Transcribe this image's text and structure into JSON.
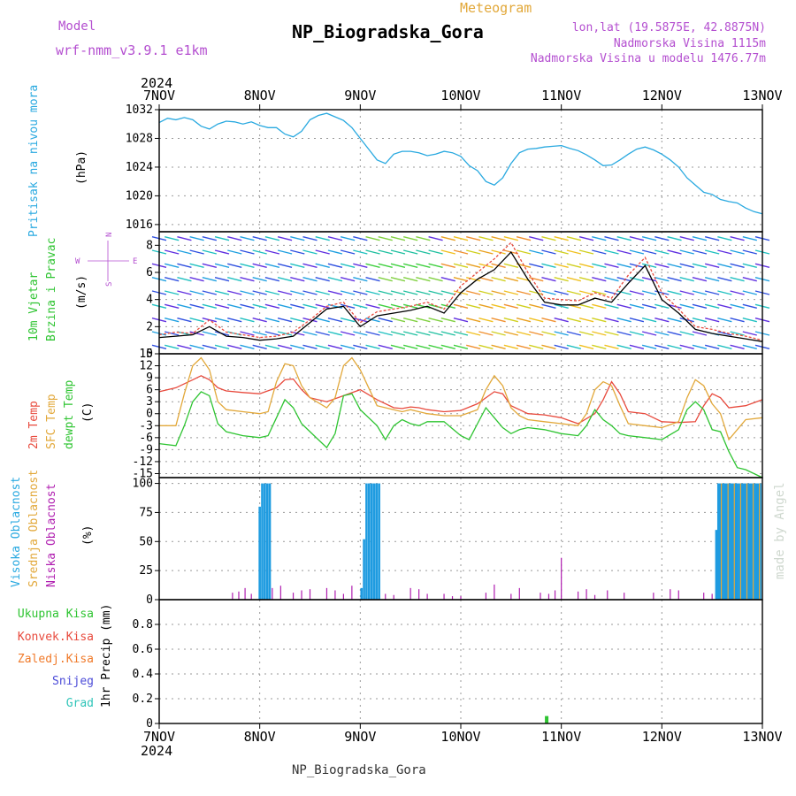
{
  "header": {
    "model_label": "Model",
    "model_name": "wrf-nmm_v3.9.1 e1km",
    "title": "NP_Biogradska_Gora",
    "subtitle": "Meteogram",
    "lonlat": "lon,lat (19.5875E, 42.8875N)",
    "altitude": "Nadmorska Visina 1115m",
    "model_altitude": "Nadmorska Visina u modelu 1476.77m",
    "footer": "NP_Biogradska_Gora",
    "watermark": "made by Angel",
    "year": "2024"
  },
  "colors": {
    "pressure": "#29a9e0",
    "temp2m": "#e84a3d",
    "sfc": "#e2a83a",
    "dewpt": "#2ec431",
    "high_cloud": "#1e9be0",
    "mid_cloud": "#e2a83a",
    "low_cloud": "#b01eb0",
    "total_precip": "#2ec431",
    "convective": "#e84a3d",
    "freezing": "#f07a2a",
    "snow": "#4b4bd8",
    "hail": "#2ec4b8",
    "purple_text": "#b44fd0",
    "grid": "#999999"
  },
  "chart_data": {
    "type": "meteogram",
    "x_ticks": [
      "7NOV",
      "8NOV",
      "9NOV",
      "10NOV",
      "11NOV",
      "12NOV",
      "13NOV"
    ],
    "x_range_hours": [
      0,
      144
    ],
    "panels": [
      {
        "id": "pressure",
        "type": "line",
        "ylabel_lines": [
          "Pritisak na nivou mora"
        ],
        "unit": "(hPa)",
        "ylim": [
          1015,
          1032
        ],
        "yticks": [
          1016,
          1020,
          1024,
          1028,
          1032
        ],
        "series": [
          {
            "x": [
              0,
              2,
              4,
              6,
              8,
              10,
              12,
              14,
              16,
              18,
              20,
              22,
              24,
              26,
              28,
              30,
              32,
              34,
              36,
              38,
              40,
              42,
              44,
              46,
              48,
              50,
              52,
              54,
              56,
              58,
              60,
              62,
              64,
              66,
              68,
              70,
              72,
              74,
              76,
              78,
              80,
              82,
              84,
              86,
              88,
              90,
              92,
              94,
              96,
              98,
              100,
              102,
              104,
              106,
              108,
              110,
              112,
              114,
              116,
              118,
              120,
              122,
              124,
              126,
              128,
              130,
              132,
              134,
              136,
              138,
              140,
              142,
              144
            ],
            "y": [
              1030.2,
              1030.8,
              1030.6,
              1030.9,
              1030.6,
              1029.7,
              1029.3,
              1030,
              1030.4,
              1030.3,
              1030,
              1030.3,
              1029.8,
              1029.5,
              1029.5,
              1028.6,
              1028.2,
              1029,
              1030.6,
              1031.2,
              1031.5,
              1031,
              1030.5,
              1029.5,
              1028,
              1026.5,
              1025,
              1024.5,
              1025.8,
              1026.2,
              1026.2,
              1026,
              1025.6,
              1025.8,
              1026.2,
              1026,
              1025.5,
              1024.2,
              1023.5,
              1022,
              1021.5,
              1022.5,
              1024.5,
              1026,
              1026.5,
              1026.6,
              1026.8,
              1026.9,
              1027,
              1026.6,
              1026.3,
              1025.7,
              1025,
              1024.2,
              1024.3,
              1025,
              1025.8,
              1026.5,
              1026.8,
              1026.4,
              1025.8,
              1025,
              1024,
              1022.5,
              1021.5,
              1020.5,
              1020.2,
              1019.5,
              1019.2,
              1019,
              1018.3,
              1017.8,
              1017.5
            ]
          }
        ]
      },
      {
        "id": "wind",
        "type": "line",
        "ylabel_lines": [
          "10m Vjetar",
          "Brzina i Pravac"
        ],
        "unit": "(m/s)",
        "ylim": [
          0,
          9
        ],
        "yticks": [
          0,
          2,
          4,
          6,
          8
        ],
        "compass": [
          "N",
          "E",
          "S",
          "W"
        ],
        "series": [
          {
            "name": "speed",
            "x": [
              0,
              4,
              8,
              12,
              16,
              20,
              24,
              28,
              32,
              36,
              40,
              44,
              48,
              52,
              56,
              60,
              64,
              68,
              72,
              76,
              80,
              84,
              88,
              92,
              96,
              100,
              104,
              108,
              112,
              116,
              120,
              124,
              128,
              132,
              136,
              140,
              144
            ],
            "y": [
              1.2,
              1.3,
              1.4,
              2.0,
              1.3,
              1.2,
              1.0,
              1.1,
              1.3,
              2.3,
              3.3,
              3.5,
              2.0,
              2.8,
              3.0,
              3.2,
              3.5,
              3.0,
              4.5,
              5.5,
              6.2,
              7.5,
              5.5,
              3.8,
              3.6,
              3.6,
              4.1,
              3.8,
              5.2,
              6.5,
              4.0,
              3.0,
              1.8,
              1.5,
              1.3,
              1.1,
              0.9
            ]
          },
          {
            "name": "gust",
            "x": [
              0,
              4,
              8,
              12,
              16,
              20,
              24,
              28,
              32,
              36,
              40,
              44,
              48,
              52,
              56,
              60,
              64,
              68,
              72,
              76,
              80,
              84,
              88,
              92,
              96,
              100,
              104,
              108,
              112,
              116,
              120,
              124,
              128,
              132,
              136,
              140,
              144
            ],
            "y": [
              1.4,
              1.6,
              1.5,
              2.5,
              1.6,
              1.4,
              1.2,
              1.3,
              1.6,
              2.5,
              3.5,
              3.8,
              2.3,
              3.1,
              3.3,
              3.5,
              3.8,
              3.3,
              5.0,
              6.0,
              7.0,
              8.2,
              6.0,
              4.1,
              4.0,
              3.9,
              4.5,
              4.1,
              5.8,
              7.1,
              4.5,
              3.3,
              2.0,
              1.8,
              1.5,
              1.3,
              1.0
            ]
          }
        ]
      },
      {
        "id": "temperature",
        "type": "line",
        "ylabel_lines": [
          "2m Temp",
          "SFC Temp",
          "dewpt Temp"
        ],
        "unit": "(C)",
        "ylim": [
          -16,
          15
        ],
        "yticks": [
          -15,
          -12,
          -9,
          -6,
          -3,
          0,
          3,
          6,
          9,
          12,
          15
        ],
        "series": [
          {
            "name": "2m Temp",
            "x": [
              0,
              4,
              8,
              10,
              12,
              14,
              16,
              20,
              24,
              28,
              30,
              32,
              34,
              36,
              40,
              44,
              48,
              52,
              56,
              58,
              60,
              62,
              64,
              68,
              72,
              76,
              80,
              82,
              84,
              86,
              88,
              92,
              96,
              100,
              104,
              106,
              108,
              110,
              112,
              116,
              120,
              124,
              128,
              130,
              132,
              134,
              136,
              140,
              144
            ],
            "y": [
              5.5,
              6.5,
              8.5,
              9.5,
              8.5,
              6.5,
              5.7,
              5.3,
              5.0,
              6.5,
              8.5,
              8.7,
              6,
              4,
              3,
              4.5,
              6,
              3.5,
              1.5,
              1.3,
              1.7,
              1.5,
              1.0,
              0.5,
              0.8,
              2.5,
              5.5,
              5.0,
              2.0,
              1.0,
              0.0,
              -0.3,
              -1.0,
              -2.5,
              0.0,
              3.5,
              8.0,
              5.0,
              0.5,
              0.0,
              -2.0,
              -2.2,
              -2.0,
              2.0,
              5.0,
              4.0,
              1.5,
              2.0,
              3.5
            ]
          },
          {
            "name": "SFC Temp",
            "x": [
              0,
              4,
              6,
              8,
              10,
              12,
              14,
              16,
              20,
              24,
              26,
              28,
              30,
              32,
              34,
              36,
              40,
              42,
              44,
              46,
              48,
              52,
              56,
              58,
              60,
              62,
              64,
              68,
              72,
              76,
              78,
              80,
              82,
              84,
              86,
              88,
              92,
              96,
              100,
              102,
              104,
              106,
              108,
              110,
              112,
              116,
              120,
              124,
              126,
              128,
              130,
              132,
              134,
              136,
              140,
              144
            ],
            "y": [
              -3.0,
              -3.0,
              5.0,
              12.0,
              14.0,
              11.0,
              3.0,
              1.0,
              0.5,
              0.0,
              0.5,
              8.0,
              12.5,
              12.0,
              7.0,
              4.0,
              1.5,
              4.0,
              12.0,
              14.0,
              11.0,
              2.0,
              1.0,
              0.5,
              1.0,
              0.5,
              0.0,
              -0.5,
              -0.5,
              1.0,
              6.0,
              9.5,
              7.0,
              1.5,
              -0.5,
              -1.5,
              -2.0,
              -2.5,
              -3.0,
              0.0,
              6.0,
              8.0,
              7.0,
              2.0,
              -2.5,
              -3.0,
              -3.5,
              -2.0,
              4.0,
              8.5,
              7.0,
              2.5,
              0.0,
              -6.5,
              -1.5,
              -1.0
            ]
          },
          {
            "name": "dewpt Temp",
            "x": [
              0,
              4,
              6,
              8,
              10,
              12,
              14,
              16,
              20,
              24,
              26,
              28,
              30,
              32,
              34,
              36,
              40,
              42,
              44,
              46,
              48,
              52,
              54,
              56,
              58,
              60,
              62,
              64,
              68,
              72,
              74,
              76,
              78,
              80,
              82,
              84,
              86,
              88,
              92,
              96,
              100,
              102,
              104,
              106,
              108,
              110,
              112,
              116,
              120,
              124,
              126,
              128,
              130,
              132,
              134,
              136,
              138,
              140,
              142,
              144
            ],
            "y": [
              -7.5,
              -8.0,
              -3.0,
              3.0,
              5.5,
              4.5,
              -2.5,
              -4.5,
              -5.5,
              -6.0,
              -5.5,
              -1.0,
              3.5,
              1.5,
              -2.5,
              -4.5,
              -8.5,
              -5.0,
              4.5,
              5.0,
              1.0,
              -3.0,
              -6.5,
              -3.0,
              -1.5,
              -2.5,
              -3.0,
              -2.0,
              -2.0,
              -5.5,
              -6.5,
              -2.5,
              1.5,
              -1.0,
              -3.5,
              -5.0,
              -4.0,
              -3.5,
              -4.0,
              -5.0,
              -5.5,
              -3.0,
              1.0,
              -1.5,
              -3.0,
              -5.0,
              -5.5,
              -6.0,
              -6.5,
              -4.0,
              1.0,
              3.0,
              1.0,
              -4.0,
              -4.5,
              -9.5,
              -13.5,
              -14.0,
              -15.0,
              -16.0
            ]
          }
        ]
      },
      {
        "id": "clouds",
        "type": "bar",
        "ylabel_lines": [
          "Visoka Oblacnost",
          "Srednja Oblacnost",
          "Niska Oblacnost"
        ],
        "unit": "(%)",
        "ylim": [
          0,
          105
        ],
        "yticks": [
          0,
          25,
          50,
          75,
          100
        ],
        "high_cloud": {
          "x": [
            24.0,
            24.6,
            25.2,
            25.8,
            26.4,
            48.3,
            48.9,
            49.5,
            50.1,
            50.7,
            51.3,
            51.9,
            52.5,
            133.0,
            133.5,
            134.0,
            134.5,
            135.0,
            135.5,
            136.0,
            136.5,
            137.0,
            137.5,
            138.0,
            138.5,
            139.0,
            139.5,
            140.0,
            140.5,
            141.0,
            141.5,
            142.0,
            142.5,
            143.0,
            143.5
          ],
          "y": [
            80,
            100,
            100,
            100,
            100,
            10,
            52,
            100,
            100,
            100,
            100,
            100,
            100,
            60,
            100,
            100,
            100,
            100,
            100,
            100,
            100,
            100,
            100,
            100,
            100,
            100,
            100,
            100,
            100,
            100,
            100,
            100,
            100,
            100,
            100
          ]
        },
        "mid_cloud": {
          "x": [
            134.2,
            135.8,
            137.3,
            138.8,
            140.3,
            141.8,
            143.3
          ],
          "y": [
            100,
            100,
            100,
            100,
            100,
            100,
            100
          ]
        },
        "low_cloud": {
          "x": [
            17.5,
            19,
            20.5,
            22,
            27,
            29,
            32,
            34,
            36,
            40,
            42,
            44,
            46,
            54,
            56,
            60,
            62,
            64,
            68,
            70,
            72,
            78,
            80,
            84,
            86,
            91,
            93,
            94.5,
            96,
            100,
            102,
            104,
            107,
            111,
            118,
            122,
            124,
            130,
            132
          ],
          "y": [
            6,
            7,
            10,
            5,
            10,
            12,
            6,
            8,
            9,
            10,
            8,
            5,
            12,
            5,
            4,
            10,
            9,
            5,
            5,
            3,
            3,
            6,
            13,
            5,
            10,
            6,
            5,
            8,
            36,
            7,
            9,
            4,
            8,
            6,
            6,
            9,
            8,
            6,
            5
          ]
        }
      },
      {
        "id": "precip",
        "type": "bar",
        "ylabel_lines": [
          "1hr Precip (mm)"
        ],
        "legend": [
          "Ukupna Kisa",
          "Konvek.Kisa",
          "Zaledj.Kisa",
          "Snijeg",
          "Grad"
        ],
        "ylim": [
          0,
          1.0
        ],
        "yticks": [
          0,
          0.2,
          0.4,
          0.6,
          0.8
        ],
        "ytick_labels": [
          "0",
          "0.2",
          "0.4",
          "0.6",
          "0.8"
        ],
        "total_rain": {
          "x": [
            92.5
          ],
          "y": [
            0.06
          ]
        }
      }
    ]
  }
}
